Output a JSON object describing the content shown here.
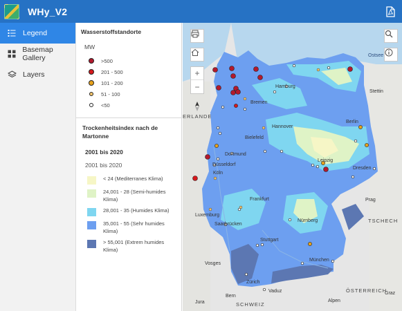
{
  "header": {
    "title": "WHy_V2",
    "pdf_icon": "pdf-icon",
    "colors": {
      "bar": "#2672c4"
    }
  },
  "nav": {
    "items": [
      {
        "label": "Legend",
        "icon": "legend-list-icon",
        "active": true
      },
      {
        "label": "Basemap Gallery",
        "icon": "basemap-grid-icon",
        "active": false
      },
      {
        "label": "Layers",
        "icon": "layers-icon",
        "active": false
      }
    ]
  },
  "legend": {
    "layer1_title": "Wasserstoffstandorte",
    "layer1_unit": "MW",
    "dots": [
      {
        "label": ">500",
        "color": "#b3192d"
      },
      {
        "label": "201 - 500",
        "color": "#d7191c"
      },
      {
        "label": "101 - 200",
        "color": "#e8a21b"
      },
      {
        "label": "51 - 100",
        "color": "#f3c46b"
      },
      {
        "label": "<50",
        "color": "#ffffff"
      }
    ],
    "layer2_title": "Trockenheitsindex nach de Martonne",
    "period_heading": "2001 bis 2020",
    "period_sub": "2001 bis 2020",
    "classes": [
      {
        "label": "< 24 (Mediterranes Klima)",
        "color": "#f6f6c6"
      },
      {
        "label": "24,001 - 28 (Semi-humides Klima)",
        "color": "#dff3c6"
      },
      {
        "label": "28,001 - 35 (Humides Klima)",
        "color": "#7fd6f0"
      },
      {
        "label": "35,001 - 55 (Sehr humides Klima)",
        "color": "#6d9ff0"
      },
      {
        "label": "> 55,001 (Extrem humides Klima)",
        "color": "#5c77b2"
      }
    ]
  },
  "map": {
    "labels": [
      {
        "name": "city-hamburg",
        "text": "Hamburg"
      },
      {
        "name": "city-bremen",
        "text": "Bremen"
      },
      {
        "name": "city-hannover",
        "text": "Hannover"
      },
      {
        "name": "city-berlin",
        "text": "Berlin"
      },
      {
        "name": "city-bielefeld",
        "text": "Bielefeld"
      },
      {
        "name": "city-dortmund",
        "text": "Dortmund"
      },
      {
        "name": "city-duesseldorf",
        "text": "Düsseldorf"
      },
      {
        "name": "city-koeln",
        "text": "Köln"
      },
      {
        "name": "city-leipzig",
        "text": "Leipzig"
      },
      {
        "name": "city-dresden",
        "text": "Dresden"
      },
      {
        "name": "city-frankfurt",
        "text": "Frankfurt"
      },
      {
        "name": "city-nuernberg",
        "text": "Nürnberg"
      },
      {
        "name": "city-stuttgart",
        "text": "Stuttgart"
      },
      {
        "name": "city-muenchen",
        "text": "München"
      },
      {
        "name": "city-saarbruecken",
        "text": "Saarbrücken"
      },
      {
        "name": "city-luxemburg",
        "text": "Luxemburg"
      },
      {
        "name": "city-stettin",
        "text": "Stettin"
      },
      {
        "name": "city-prag",
        "text": "Prag"
      },
      {
        "name": "city-zuerich",
        "text": "Zürich"
      },
      {
        "name": "city-bern",
        "text": "Bern"
      },
      {
        "name": "city-vaduz",
        "text": "Vaduz"
      },
      {
        "name": "city-graz",
        "text": "Graz"
      },
      {
        "name": "region-tschechien",
        "text": "TSCHECH"
      },
      {
        "name": "region-oesterreich",
        "text": "ÖSTERREICH"
      },
      {
        "name": "region-schweiz",
        "text": "SCHWEIZ"
      },
      {
        "name": "region-niederlande",
        "text": "ERLANDE"
      },
      {
        "name": "region-vosges",
        "text": "Vosges"
      },
      {
        "name": "region-alpen",
        "text": "Alpen"
      },
      {
        "name": "region-jura",
        "text": "Jura"
      },
      {
        "name": "water-ostsee",
        "text": "Ostsee"
      }
    ]
  }
}
